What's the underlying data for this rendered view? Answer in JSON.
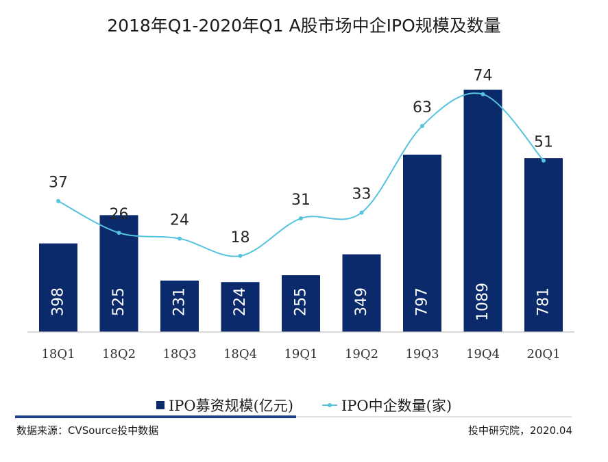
{
  "title": "2018年Q1-2020年Q1 A股市场中企IPO规模及数量",
  "chart_data": {
    "type": "bar",
    "categories": [
      "18Q1",
      "18Q2",
      "18Q3",
      "18Q4",
      "19Q1",
      "19Q2",
      "19Q3",
      "19Q4",
      "20Q1"
    ],
    "series": [
      {
        "name": "IPO募资规模(亿元)",
        "type": "bar",
        "color": "#0b2a6b",
        "values": [
          398,
          525,
          231,
          224,
          255,
          349,
          797,
          1089,
          781
        ]
      },
      {
        "name": "IPO中企数量(家)",
        "type": "line",
        "color": "#55c3de",
        "values": [
          37,
          26,
          24,
          18,
          31,
          33,
          63,
          74,
          51
        ]
      }
    ],
    "bar_ylim": [
      0,
      1250
    ],
    "line_ylim": [
      -10,
      77
    ],
    "legend_position": "bottom",
    "grid": false
  },
  "legend": {
    "bar_label": "IPO募资规模(亿元)",
    "line_label": "IPO中企数量(家)"
  },
  "footer": {
    "source": "数据来源：CVSource投中数据",
    "credit": "投中研究院，2020.04"
  }
}
